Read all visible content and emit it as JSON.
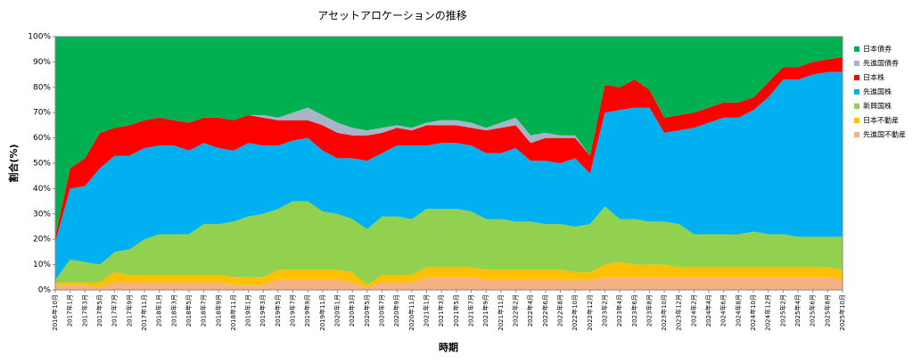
{
  "chart_data": {
    "type": "stacked_area",
    "title": "アセットアロケーションの推移",
    "x_label": "時期",
    "y_label": "割合(%)",
    "categories": [
      "2016年10月",
      "2017年1月",
      "2017年3月",
      "2017年5月",
      "2017年7月",
      "2017年9月",
      "2017年11月",
      "2018年1月",
      "2018年3月",
      "2018年5月",
      "2018年7月",
      "2018年9月",
      "2018年11月",
      "2019年1月",
      "2019年3月",
      "2019年5月",
      "2019年7月",
      "2019年9月",
      "2019年11月",
      "2020年1月",
      "2020年3月",
      "2020年5月",
      "2020年7月",
      "2020年9月",
      "2020年11月",
      "2021年1月",
      "2021年3月",
      "2021年5月",
      "2021年7月",
      "2021年9月",
      "2021年11月",
      "2022年2月",
      "2022年4月",
      "2022年6月",
      "2022年8月",
      "2022年10月",
      "2022年12月",
      "2023年2月",
      "2023年4月",
      "2023年6月",
      "2023年8月",
      "2023年10月",
      "2023年12月",
      "2024年2月",
      "2024年4月",
      "2024年6月",
      "2024年8月",
      "2024年10月",
      "2024年12月",
      "2025年2月",
      "2025年4月",
      "2025年6月",
      "2025年8月",
      "2025年10月"
    ],
    "series": [
      {
        "name": "先進国不動産",
        "color": "#f4b183",
        "values": [
          2,
          2,
          2,
          1,
          3,
          3,
          3,
          3,
          3,
          3,
          3,
          3,
          2,
          2,
          2,
          4,
          4,
          4,
          4,
          4,
          3,
          1,
          3,
          3,
          3,
          5,
          5,
          5,
          5,
          4,
          4,
          4,
          4,
          4,
          4,
          4,
          4,
          5,
          5,
          5,
          5,
          5,
          5,
          5,
          5,
          5,
          5,
          5,
          5,
          5,
          5,
          5,
          5,
          4
        ]
      },
      {
        "name": "日本不動産",
        "color": "#ffc000",
        "values": [
          1,
          1,
          1,
          2,
          4,
          3,
          3,
          3,
          3,
          3,
          3,
          3,
          3,
          3,
          3,
          4,
          4,
          4,
          4,
          4,
          4,
          1,
          3,
          3,
          3,
          4,
          4,
          4,
          4,
          4,
          4,
          4,
          4,
          4,
          4,
          3,
          3,
          5,
          6,
          5,
          5,
          5,
          4,
          4,
          4,
          4,
          4,
          4,
          4,
          4,
          4,
          4,
          4,
          4
        ]
      },
      {
        "name": "新興国株",
        "color": "#92d050",
        "values": [
          1,
          9,
          8,
          7,
          8,
          10,
          14,
          16,
          16,
          16,
          20,
          20,
          22,
          24,
          25,
          24,
          27,
          27,
          23,
          22,
          21,
          22,
          23,
          23,
          22,
          23,
          23,
          23,
          22,
          20,
          20,
          19,
          19,
          18,
          18,
          18,
          19,
          23,
          17,
          18,
          17,
          17,
          17,
          13,
          13,
          13,
          13,
          14,
          13,
          13,
          12,
          12,
          12,
          13
        ]
      },
      {
        "name": "先進国株",
        "color": "#00b0f0",
        "values": [
          15,
          28,
          30,
          38,
          38,
          37,
          36,
          35,
          35,
          33,
          32,
          30,
          28,
          29,
          27,
          25,
          24,
          25,
          24,
          22,
          24,
          27,
          25,
          28,
          29,
          25,
          26,
          26,
          26,
          26,
          26,
          29,
          24,
          25,
          24,
          27,
          20,
          37,
          43,
          44,
          45,
          35,
          37,
          42,
          44,
          46,
          46,
          48,
          54,
          61,
          62,
          64,
          65,
          65
        ]
      },
      {
        "name": "日本株",
        "color": "#ff0000",
        "values": [
          2,
          8,
          11,
          14,
          11,
          12,
          11,
          11,
          10,
          11,
          10,
          12,
          12,
          11,
          11,
          10,
          8,
          7,
          10,
          10,
          9,
          10,
          8,
          7,
          6,
          8,
          7,
          7,
          7,
          9,
          10,
          9,
          7,
          9,
          10,
          8,
          7,
          11,
          9,
          11,
          7,
          6,
          6,
          6,
          6,
          6,
          6,
          5,
          6,
          5,
          5,
          5,
          5,
          6
        ]
      },
      {
        "name": "先進国債券",
        "color": "#aab4c8",
        "values": [
          0,
          0,
          0,
          0,
          0,
          0,
          0,
          0,
          0,
          0,
          0,
          0,
          0,
          0,
          1,
          1,
          3,
          5,
          4,
          4,
          3,
          2,
          2,
          1,
          1,
          1,
          2,
          2,
          2,
          1,
          2,
          3,
          3,
          2,
          1,
          1,
          0,
          0,
          0,
          0,
          0,
          0,
          0,
          0,
          0,
          0,
          0,
          0,
          0,
          0,
          0,
          0,
          0,
          0
        ]
      },
      {
        "name": "日本債券",
        "color": "#00b050",
        "values": [
          79,
          52,
          48,
          38,
          36,
          35,
          33,
          32,
          33,
          34,
          32,
          32,
          33,
          31,
          31,
          32,
          30,
          28,
          31,
          34,
          36,
          37,
          36,
          35,
          36,
          34,
          33,
          33,
          34,
          36,
          34,
          32,
          39,
          38,
          39,
          39,
          47,
          19,
          20,
          17,
          21,
          32,
          31,
          30,
          28,
          26,
          26,
          24,
          18,
          12,
          12,
          10,
          9,
          8
        ]
      }
    ],
    "ylim": [
      0,
      100
    ],
    "yticks": [
      {
        "value": 0,
        "label": "0%"
      },
      {
        "value": 10,
        "label": "10%"
      },
      {
        "value": 20,
        "label": "20%"
      },
      {
        "value": 30,
        "label": "30%"
      },
      {
        "value": 40,
        "label": "40%"
      },
      {
        "value": 50,
        "label": "50%"
      },
      {
        "value": 60,
        "label": "60%"
      },
      {
        "value": 70,
        "label": "70%"
      },
      {
        "value": 80,
        "label": "80%"
      },
      {
        "value": 90,
        "label": "90%"
      },
      {
        "value": 100,
        "label": "100%"
      }
    ],
    "grid": false,
    "legend": "right"
  }
}
